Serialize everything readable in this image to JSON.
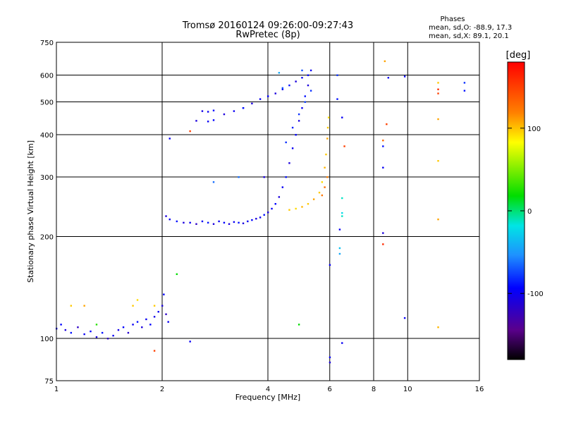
{
  "chart_data": {
    "type": "scatter",
    "title": "Tromsø 20160124 09:26:00-09:27:43",
    "subtitle": "RwPretec (8p)",
    "phase_box": {
      "header": "Phases",
      "line_o": "mean, sd,O: -88.9, 17.3",
      "line_x": "mean, sd,X:  89.1, 20.1"
    },
    "xlabel": "Frequency [MHz]",
    "ylabel": "Stationary phase Virtual Height [km]",
    "x_scale": "log",
    "y_scale": "log",
    "xlim": [
      1,
      16
    ],
    "ylim": [
      75,
      750
    ],
    "x_ticks": [
      1,
      2,
      4,
      6,
      8,
      10,
      16
    ],
    "x_tick_labels": [
      "1",
      "2",
      "4",
      "6",
      "8",
      "10",
      "16"
    ],
    "y_ticks": [
      75,
      100,
      200,
      300,
      400,
      500,
      600,
      750
    ],
    "y_tick_labels": [
      "75",
      "100",
      "200",
      "300",
      "400",
      "500",
      "600",
      "750"
    ],
    "grid": true,
    "colorbar": {
      "label": "[deg]",
      "min": -180,
      "max": 180,
      "ticks": [
        100,
        0,
        -100
      ],
      "tick_labels": [
        "100",
        "0",
        "-100"
      ]
    },
    "series": [
      {
        "points": [
          [
            1.0,
            107,
            -100
          ],
          [
            1.03,
            110,
            -95
          ],
          [
            1.06,
            106,
            -110
          ],
          [
            1.1,
            104,
            -90
          ],
          [
            1.15,
            108,
            -120
          ],
          [
            1.2,
            103,
            -100
          ],
          [
            1.25,
            105,
            -95
          ],
          [
            1.3,
            101,
            -110
          ],
          [
            1.35,
            104,
            -90
          ],
          [
            1.4,
            100,
            -120
          ],
          [
            1.45,
            102,
            -100
          ],
          [
            1.5,
            106,
            -105
          ],
          [
            1.55,
            108,
            -95
          ],
          [
            1.6,
            104,
            -115
          ],
          [
            1.65,
            110,
            -100
          ],
          [
            1.7,
            112,
            -90
          ],
          [
            1.75,
            108,
            -110
          ],
          [
            1.8,
            114,
            -100
          ],
          [
            1.85,
            110,
            -95
          ],
          [
            1.9,
            116,
            -105
          ],
          [
            1.95,
            120,
            -100
          ],
          [
            2.0,
            125,
            -110
          ],
          [
            2.02,
            135,
            -95
          ],
          [
            2.05,
            118,
            -120
          ],
          [
            2.08,
            112,
            -100
          ],
          [
            2.05,
            230,
            -110
          ],
          [
            2.1,
            225,
            -100
          ],
          [
            2.2,
            222,
            -90
          ],
          [
            2.3,
            220,
            -110
          ],
          [
            2.4,
            220,
            -100
          ],
          [
            2.5,
            218,
            -120
          ],
          [
            2.6,
            222,
            -100
          ],
          [
            2.7,
            220,
            -90
          ],
          [
            2.8,
            218,
            -110
          ],
          [
            2.9,
            222,
            -100
          ],
          [
            3.0,
            220,
            -95
          ],
          [
            3.1,
            218,
            -110
          ],
          [
            3.2,
            221,
            -100
          ],
          [
            3.3,
            220,
            -90
          ],
          [
            3.4,
            219,
            -110
          ],
          [
            3.5,
            222,
            -100
          ],
          [
            3.6,
            224,
            -95
          ],
          [
            3.7,
            226,
            -110
          ],
          [
            3.8,
            228,
            -100
          ],
          [
            3.9,
            232,
            -90
          ],
          [
            4.0,
            236,
            -110
          ],
          [
            4.1,
            242,
            -100
          ],
          [
            4.2,
            250,
            -95
          ],
          [
            4.3,
            262,
            -110
          ],
          [
            4.4,
            280,
            -100
          ],
          [
            4.5,
            300,
            -90
          ],
          [
            4.6,
            330,
            -110
          ],
          [
            4.7,
            365,
            -100
          ],
          [
            4.8,
            400,
            -95
          ],
          [
            4.9,
            440,
            -110
          ],
          [
            5.0,
            480,
            -100
          ],
          [
            5.1,
            520,
            -90
          ],
          [
            5.2,
            560,
            -110
          ],
          [
            5.3,
            620,
            -100
          ],
          [
            2.6,
            470,
            -105
          ],
          [
            2.7,
            468,
            -100
          ],
          [
            2.8,
            472,
            -95
          ],
          [
            3.0,
            460,
            -110
          ],
          [
            3.2,
            470,
            -100
          ],
          [
            3.4,
            480,
            -90
          ],
          [
            3.6,
            495,
            -110
          ],
          [
            3.8,
            510,
            -100
          ],
          [
            4.0,
            520,
            -95
          ],
          [
            4.2,
            530,
            -110
          ],
          [
            4.4,
            545,
            -100
          ],
          [
            4.6,
            560,
            -90
          ],
          [
            4.8,
            575,
            -110
          ],
          [
            5.0,
            590,
            -100
          ],
          [
            5.2,
            600,
            -95
          ],
          [
            2.5,
            440,
            -110
          ],
          [
            2.7,
            438,
            -100
          ],
          [
            2.8,
            442,
            -95
          ],
          [
            4.5,
            380,
            -80
          ],
          [
            4.7,
            420,
            -85
          ],
          [
            4.9,
            460,
            -80
          ],
          [
            5.1,
            500,
            -75
          ],
          [
            5.3,
            540,
            -80
          ],
          [
            4.6,
            240,
            100
          ],
          [
            4.8,
            242,
            95
          ],
          [
            5.0,
            245,
            105
          ],
          [
            5.2,
            250,
            100
          ],
          [
            5.4,
            258,
            110
          ],
          [
            5.6,
            270,
            100
          ],
          [
            5.7,
            290,
            95
          ],
          [
            5.8,
            320,
            105
          ],
          [
            5.85,
            350,
            100
          ],
          [
            5.9,
            390,
            110
          ],
          [
            5.92,
            420,
            100
          ],
          [
            5.95,
            450,
            95
          ],
          [
            5.9,
            300,
            120
          ],
          [
            5.8,
            280,
            130
          ],
          [
            5.7,
            265,
            125
          ],
          [
            6.3,
            600,
            -80
          ],
          [
            6.3,
            510,
            -90
          ],
          [
            6.5,
            450,
            -100
          ],
          [
            6.6,
            370,
            150
          ],
          [
            6.5,
            260,
            -10
          ],
          [
            6.5,
            235,
            -20
          ],
          [
            6.5,
            230,
            -10
          ],
          [
            6.4,
            210,
            -100
          ],
          [
            6.4,
            185,
            -30
          ],
          [
            6.4,
            178,
            -40
          ],
          [
            6.0,
            165,
            -100
          ],
          [
            6.0,
            88,
            -100
          ],
          [
            6.0,
            85,
            -110
          ],
          [
            6.5,
            97,
            -100
          ],
          [
            8.6,
            660,
            110
          ],
          [
            8.8,
            590,
            -100
          ],
          [
            9.8,
            595,
            -95
          ],
          [
            8.7,
            430,
            150
          ],
          [
            8.5,
            385,
            130
          ],
          [
            8.5,
            370,
            -90
          ],
          [
            8.5,
            320,
            -100
          ],
          [
            8.5,
            205,
            -110
          ],
          [
            8.5,
            190,
            160
          ],
          [
            9.8,
            115,
            -100
          ],
          [
            12.2,
            570,
            100
          ],
          [
            12.2,
            545,
            160
          ],
          [
            12.2,
            530,
            150
          ],
          [
            14.5,
            570,
            -80
          ],
          [
            14.5,
            540,
            -90
          ],
          [
            12.2,
            445,
            110
          ],
          [
            12.2,
            335,
            100
          ],
          [
            12.2,
            225,
            110
          ],
          [
            12.2,
            108,
            105
          ],
          [
            1.1,
            125,
            100
          ],
          [
            1.2,
            125,
            110
          ],
          [
            1.65,
            125,
            100
          ],
          [
            1.7,
            130,
            95
          ],
          [
            1.9,
            125,
            100
          ],
          [
            2.2,
            155,
            20
          ],
          [
            2.1,
            390,
            -100
          ],
          [
            2.4,
            410,
            150
          ],
          [
            2.8,
            290,
            -60
          ],
          [
            3.3,
            300,
            -60
          ],
          [
            3.4,
            480,
            -90
          ],
          [
            3.9,
            300,
            -110
          ],
          [
            4.3,
            610,
            -40
          ],
          [
            4.4,
            550,
            -70
          ],
          [
            5.0,
            620,
            -70
          ],
          [
            4.9,
            110,
            20
          ],
          [
            1.9,
            92,
            150
          ],
          [
            2.4,
            98,
            -100
          ],
          [
            1.3,
            110,
            30
          ]
        ]
      }
    ]
  }
}
